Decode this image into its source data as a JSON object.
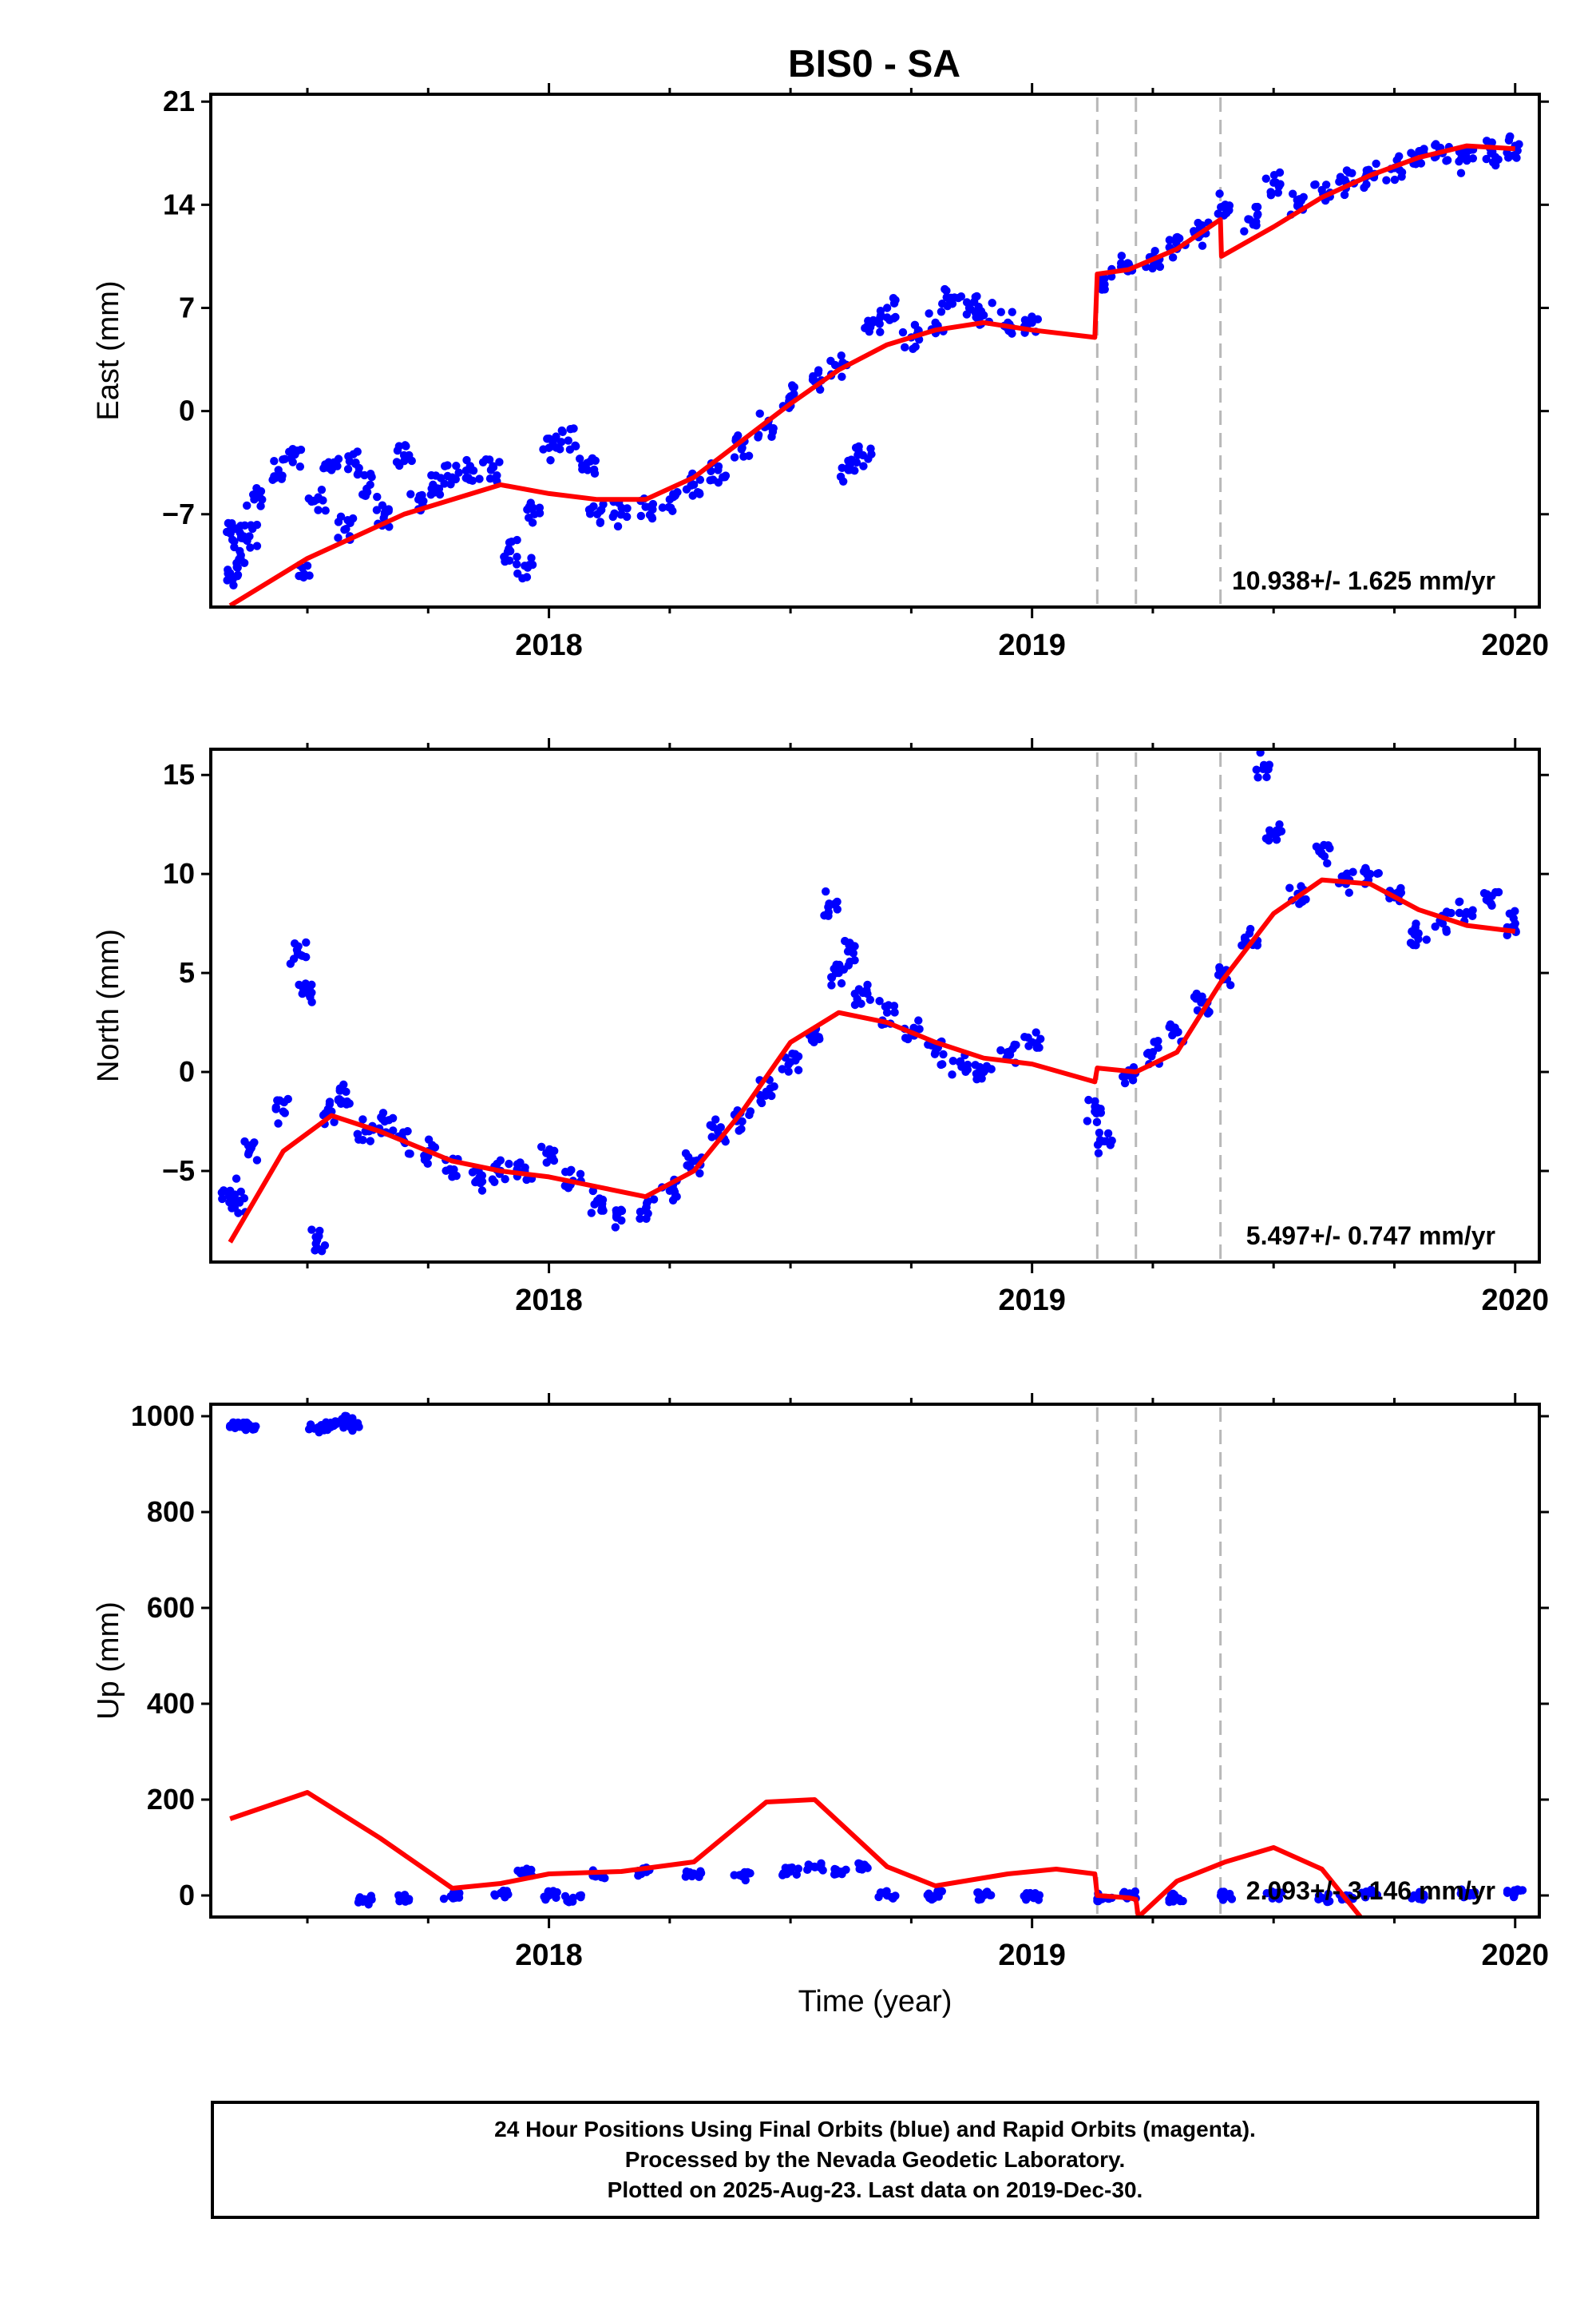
{
  "title": "BIS0 - SA",
  "colors": {
    "points": "#0000ff",
    "model": "#ff0000",
    "offset_lines": "#b8b8b8",
    "axes": "#000000"
  },
  "chart_data": [
    {
      "type": "scatter",
      "panel": "east",
      "ylabel": "East (mm)",
      "xlabel": "",
      "xlim": [
        2017.3,
        2020.05
      ],
      "ylim": [
        -13.3,
        21.5
      ],
      "yticks": [
        -7,
        0,
        7,
        14,
        21
      ],
      "ytick_labels": [
        "−7",
        "0",
        "7",
        "14",
        "21"
      ],
      "xticks": [
        2018,
        2019,
        2020
      ],
      "xtick_labels": [
        "2018",
        "2019",
        "2020"
      ],
      "grid": false,
      "rate_label": "10.938+/- 1.625 mm/yr",
      "offset_lines": [
        2019.135,
        2019.215,
        2019.39
      ],
      "points": [
        [
          2017.34,
          -11
        ],
        [
          2017.35,
          -8
        ],
        [
          2017.36,
          -9.5
        ],
        [
          2017.38,
          -8.5
        ],
        [
          2017.39,
          -6
        ],
        [
          2017.44,
          -4
        ],
        [
          2017.47,
          -3
        ],
        [
          2017.5,
          -10.5
        ],
        [
          2017.52,
          -6
        ],
        [
          2017.55,
          -4
        ],
        [
          2017.58,
          -8
        ],
        [
          2017.6,
          -3.5
        ],
        [
          2017.63,
          -5
        ],
        [
          2017.66,
          -7
        ],
        [
          2017.7,
          -3
        ],
        [
          2017.73,
          -6
        ],
        [
          2017.76,
          -5
        ],
        [
          2017.8,
          -4.5
        ],
        [
          2017.84,
          -4
        ],
        [
          2017.88,
          -4
        ],
        [
          2017.92,
          -9.5
        ],
        [
          2017.95,
          -10.5
        ],
        [
          2017.97,
          -7
        ],
        [
          2018.0,
          -2.5
        ],
        [
          2018.04,
          -2
        ],
        [
          2018.08,
          -4
        ],
        [
          2018.1,
          -7
        ],
        [
          2018.15,
          -7
        ],
        [
          2018.2,
          -6.5
        ],
        [
          2018.25,
          -6
        ],
        [
          2018.3,
          -5
        ],
        [
          2018.35,
          -4
        ],
        [
          2018.4,
          -2.5
        ],
        [
          2018.45,
          -1
        ],
        [
          2018.5,
          1
        ],
        [
          2018.55,
          2
        ],
        [
          2018.6,
          3
        ],
        [
          2018.62,
          -4
        ],
        [
          2018.65,
          -3
        ],
        [
          2018.67,
          6
        ],
        [
          2018.7,
          7
        ],
        [
          2018.75,
          5
        ],
        [
          2018.8,
          6
        ],
        [
          2018.83,
          7.5
        ],
        [
          2018.87,
          7
        ],
        [
          2018.9,
          6.5
        ],
        [
          2018.95,
          6
        ],
        [
          2019.0,
          6
        ],
        [
          2019.15,
          9
        ],
        [
          2019.2,
          10
        ],
        [
          2019.25,
          10.5
        ],
        [
          2019.3,
          11
        ],
        [
          2019.35,
          12
        ],
        [
          2019.4,
          14
        ],
        [
          2019.45,
          13
        ],
        [
          2019.5,
          15.5
        ],
        [
          2019.55,
          14
        ],
        [
          2019.6,
          15
        ],
        [
          2019.65,
          15.5
        ],
        [
          2019.7,
          16
        ],
        [
          2019.75,
          16.5
        ],
        [
          2019.8,
          17
        ],
        [
          2019.85,
          17.5
        ],
        [
          2019.9,
          17
        ],
        [
          2019.95,
          17.5
        ],
        [
          2020.0,
          18
        ]
      ],
      "model": [
        [
          2017.34,
          -13.2
        ],
        [
          2017.5,
          -10
        ],
        [
          2017.7,
          -7
        ],
        [
          2017.9,
          -5
        ],
        [
          2018.0,
          -5.6
        ],
        [
          2018.1,
          -6
        ],
        [
          2018.2,
          -6
        ],
        [
          2018.3,
          -4.5
        ],
        [
          2018.4,
          -2
        ],
        [
          2018.5,
          0.5
        ],
        [
          2018.6,
          2.8
        ],
        [
          2018.7,
          4.5
        ],
        [
          2018.8,
          5.5
        ],
        [
          2018.9,
          6
        ],
        [
          2019.0,
          5.5
        ],
        [
          2019.13,
          5
        ],
        [
          2019.135,
          9.3
        ],
        [
          2019.2,
          9.6
        ],
        [
          2019.3,
          11
        ],
        [
          2019.39,
          13
        ],
        [
          2019.392,
          10.5
        ],
        [
          2019.5,
          12.5
        ],
        [
          2019.6,
          14.5
        ],
        [
          2019.7,
          16
        ],
        [
          2019.8,
          17.2
        ],
        [
          2019.9,
          18
        ],
        [
          2020.0,
          17.8
        ]
      ]
    },
    {
      "type": "scatter",
      "panel": "north",
      "ylabel": "North (mm)",
      "xlabel": "",
      "xlim": [
        2017.3,
        2020.05
      ],
      "ylim": [
        -9.6,
        16.3
      ],
      "yticks": [
        -5,
        0,
        5,
        10,
        15
      ],
      "ytick_labels": [
        "−5",
        "0",
        "5",
        "10",
        "15"
      ],
      "xticks": [
        2018,
        2019,
        2020
      ],
      "xtick_labels": [
        "2018",
        "2019",
        "2020"
      ],
      "grid": false,
      "rate_label": "5.497+/- 0.747 mm/yr",
      "offset_lines": [
        2019.135,
        2019.215,
        2019.39
      ],
      "points": [
        [
          2017.34,
          -6
        ],
        [
          2017.36,
          -6.5
        ],
        [
          2017.38,
          -4
        ],
        [
          2017.45,
          -2
        ],
        [
          2017.48,
          6
        ],
        [
          2017.5,
          4
        ],
        [
          2017.52,
          -8.5
        ],
        [
          2017.55,
          -2
        ],
        [
          2017.58,
          -1
        ],
        [
          2017.62,
          -3
        ],
        [
          2017.66,
          -2.5
        ],
        [
          2017.7,
          -3.5
        ],
        [
          2017.75,
          -4
        ],
        [
          2017.8,
          -5
        ],
        [
          2017.85,
          -5.5
        ],
        [
          2017.9,
          -5
        ],
        [
          2017.95,
          -5
        ],
        [
          2018.0,
          -4
        ],
        [
          2018.05,
          -5.5
        ],
        [
          2018.1,
          -6.5
        ],
        [
          2018.15,
          -7.5
        ],
        [
          2018.2,
          -7
        ],
        [
          2018.25,
          -6
        ],
        [
          2018.3,
          -4.5
        ],
        [
          2018.35,
          -3
        ],
        [
          2018.4,
          -2.5
        ],
        [
          2018.45,
          -1
        ],
        [
          2018.5,
          0.5
        ],
        [
          2018.55,
          2
        ],
        [
          2018.58,
          8.5
        ],
        [
          2018.6,
          5
        ],
        [
          2018.63,
          6
        ],
        [
          2018.65,
          4
        ],
        [
          2018.7,
          3
        ],
        [
          2018.75,
          2
        ],
        [
          2018.8,
          1
        ],
        [
          2018.85,
          0.5
        ],
        [
          2018.9,
          0
        ],
        [
          2018.95,
          1
        ],
        [
          2019.0,
          1.5
        ],
        [
          2019.13,
          -2
        ],
        [
          2019.15,
          -3.5
        ],
        [
          2019.2,
          0
        ],
        [
          2019.25,
          1
        ],
        [
          2019.3,
          2
        ],
        [
          2019.35,
          3.5
        ],
        [
          2019.4,
          5
        ],
        [
          2019.45,
          7
        ],
        [
          2019.48,
          15.5
        ],
        [
          2019.5,
          12
        ],
        [
          2019.55,
          9
        ],
        [
          2019.6,
          11
        ],
        [
          2019.65,
          9.5
        ],
        [
          2019.7,
          10
        ],
        [
          2019.75,
          9
        ],
        [
          2019.8,
          7
        ],
        [
          2019.85,
          7.5
        ],
        [
          2019.9,
          8
        ],
        [
          2019.95,
          8.5
        ],
        [
          2020.0,
          7.5
        ]
      ],
      "model": [
        [
          2017.34,
          -8.6
        ],
        [
          2017.45,
          -4
        ],
        [
          2017.55,
          -2.2
        ],
        [
          2017.65,
          -3
        ],
        [
          2017.8,
          -4.5
        ],
        [
          2017.9,
          -5
        ],
        [
          2018.0,
          -5.3
        ],
        [
          2018.1,
          -5.8
        ],
        [
          2018.2,
          -6.3
        ],
        [
          2018.3,
          -5
        ],
        [
          2018.4,
          -2
        ],
        [
          2018.5,
          1.5
        ],
        [
          2018.6,
          3
        ],
        [
          2018.7,
          2.5
        ],
        [
          2018.8,
          1.5
        ],
        [
          2018.9,
          0.7
        ],
        [
          2019.0,
          0.4
        ],
        [
          2019.13,
          -0.5
        ],
        [
          2019.135,
          0.2
        ],
        [
          2019.215,
          0
        ],
        [
          2019.3,
          1
        ],
        [
          2019.39,
          4.5
        ],
        [
          2019.5,
          8
        ],
        [
          2019.6,
          9.7
        ],
        [
          2019.7,
          9.5
        ],
        [
          2019.8,
          8.2
        ],
        [
          2019.9,
          7.4
        ],
        [
          2020.0,
          7.1
        ]
      ]
    },
    {
      "type": "scatter",
      "panel": "up",
      "ylabel": "Up (mm)",
      "xlabel": "Time (year)",
      "xlim": [
        2017.3,
        2020.05
      ],
      "ylim": [
        -45,
        1025
      ],
      "yticks": [
        0,
        200,
        400,
        600,
        800,
        1000
      ],
      "ytick_labels": [
        "0",
        "200",
        "400",
        "600",
        "800",
        "1000"
      ],
      "xticks": [
        2018,
        2019,
        2020
      ],
      "xtick_labels": [
        "2018",
        "2019",
        "2020"
      ],
      "grid": false,
      "rate_label": "2.093+/- 3.146 mm/yr",
      "offset_lines": [
        2019.135,
        2019.215,
        2019.39
      ],
      "points": [
        [
          2017.34,
          980
        ],
        [
          2017.36,
          978
        ],
        [
          2017.38,
          980
        ],
        [
          2017.52,
          975
        ],
        [
          2017.54,
          978
        ],
        [
          2017.56,
          985
        ],
        [
          2017.58,
          995
        ],
        [
          2017.6,
          978
        ],
        [
          2017.62,
          -10
        ],
        [
          2017.7,
          -5
        ],
        [
          2017.8,
          0
        ],
        [
          2017.9,
          5
        ],
        [
          2017.95,
          50
        ],
        [
          2018.0,
          0
        ],
        [
          2018.05,
          -5
        ],
        [
          2018.1,
          45
        ],
        [
          2018.2,
          50
        ],
        [
          2018.3,
          45
        ],
        [
          2018.4,
          40
        ],
        [
          2018.5,
          50
        ],
        [
          2018.55,
          60
        ],
        [
          2018.6,
          50
        ],
        [
          2018.65,
          60
        ],
        [
          2018.7,
          0
        ],
        [
          2018.8,
          0
        ],
        [
          2018.9,
          0
        ],
        [
          2019.0,
          0
        ],
        [
          2019.15,
          -5
        ],
        [
          2019.2,
          0
        ],
        [
          2019.3,
          -5
        ],
        [
          2019.4,
          0
        ],
        [
          2019.5,
          0
        ],
        [
          2019.6,
          -5
        ],
        [
          2019.65,
          0
        ],
        [
          2019.7,
          5
        ],
        [
          2019.8,
          0
        ],
        [
          2019.9,
          5
        ],
        [
          2020.0,
          5
        ]
      ],
      "model": [
        [
          2017.34,
          160
        ],
        [
          2017.5,
          215
        ],
        [
          2017.65,
          120
        ],
        [
          2017.8,
          15
        ],
        [
          2017.9,
          25
        ],
        [
          2018.0,
          45
        ],
        [
          2018.15,
          50
        ],
        [
          2018.3,
          70
        ],
        [
          2018.45,
          195
        ],
        [
          2018.55,
          200
        ],
        [
          2018.7,
          60
        ],
        [
          2018.8,
          20
        ],
        [
          2018.95,
          45
        ],
        [
          2019.05,
          55
        ],
        [
          2019.13,
          45
        ],
        [
          2019.135,
          0
        ],
        [
          2019.2,
          -5
        ],
        [
          2019.215,
          -8
        ],
        [
          2019.22,
          -45
        ],
        [
          2019.3,
          30
        ],
        [
          2019.4,
          70
        ],
        [
          2019.5,
          100
        ],
        [
          2019.6,
          55
        ],
        [
          2019.68,
          -45
        ]
      ]
    }
  ],
  "footer": {
    "line1": "24 Hour Positions Using Final Orbits (blue) and Rapid Orbits (magenta).",
    "line2": "Processed by the Nevada Geodetic Laboratory.",
    "line3": "Plotted on 2025-Aug-23. Last data on 2019-Dec-30."
  }
}
